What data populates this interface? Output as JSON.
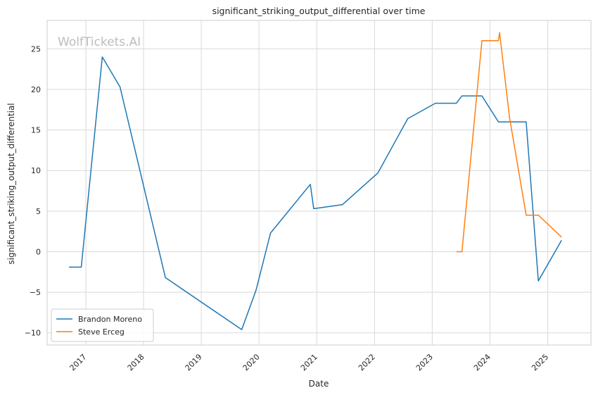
{
  "chart_data": {
    "type": "line",
    "title": "significant_striking_output_differential over time",
    "xlabel": "Date",
    "ylabel": "significant_striking_output_differential",
    "watermark": "WolfTickets.AI",
    "x_type": "date",
    "xlim": [
      "2016-05-01",
      "2025-10-01"
    ],
    "ylim": [
      -11.5,
      28.5
    ],
    "x_ticks": [
      "2017-01-01",
      "2018-01-01",
      "2019-01-01",
      "2020-01-01",
      "2021-01-01",
      "2022-01-01",
      "2023-01-01",
      "2024-01-01",
      "2025-01-01"
    ],
    "x_tick_labels": [
      "2017",
      "2018",
      "2019",
      "2020",
      "2021",
      "2022",
      "2023",
      "2024",
      "2025"
    ],
    "y_ticks": [
      -10,
      -5,
      0,
      5,
      10,
      15,
      20,
      25
    ],
    "y_tick_labels": [
      "−10",
      "−5",
      "0",
      "5",
      "10",
      "15",
      "20",
      "25"
    ],
    "grid": true,
    "legend_position": "lower-left",
    "series": [
      {
        "name": "Brandon Moreno",
        "color": "#1f77b4",
        "points": [
          [
            "2016-09-17",
            -1.9
          ],
          [
            "2016-12-03",
            -1.9
          ],
          [
            "2017-04-15",
            24.0
          ],
          [
            "2017-08-05",
            20.3
          ],
          [
            "2018-05-19",
            -3.2
          ],
          [
            "2019-09-14",
            -9.6
          ],
          [
            "2019-12-14",
            -4.7
          ],
          [
            "2020-03-14",
            2.3
          ],
          [
            "2020-11-21",
            8.3
          ],
          [
            "2020-12-12",
            5.3
          ],
          [
            "2021-06-12",
            5.8
          ],
          [
            "2022-01-22",
            9.7
          ],
          [
            "2022-07-30",
            16.4
          ],
          [
            "2023-01-21",
            18.3
          ],
          [
            "2023-06-03",
            18.3
          ],
          [
            "2023-07-08",
            19.2
          ],
          [
            "2023-11-11",
            19.2
          ],
          [
            "2024-02-24",
            16.0
          ],
          [
            "2024-08-17",
            16.0
          ],
          [
            "2024-11-02",
            -3.6
          ],
          [
            "2025-03-29",
            1.4
          ]
        ]
      },
      {
        "name": "Steve Erceg",
        "color": "#ff7f0e",
        "points": [
          [
            "2023-06-03",
            0.0
          ],
          [
            "2023-07-08",
            0.0
          ],
          [
            "2023-11-11",
            26.0
          ],
          [
            "2024-02-24",
            26.0
          ],
          [
            "2024-03-02",
            27.0
          ],
          [
            "2024-05-04",
            16.5
          ],
          [
            "2024-08-17",
            4.5
          ],
          [
            "2024-11-02",
            4.5
          ],
          [
            "2025-03-29",
            1.8
          ]
        ]
      }
    ]
  }
}
